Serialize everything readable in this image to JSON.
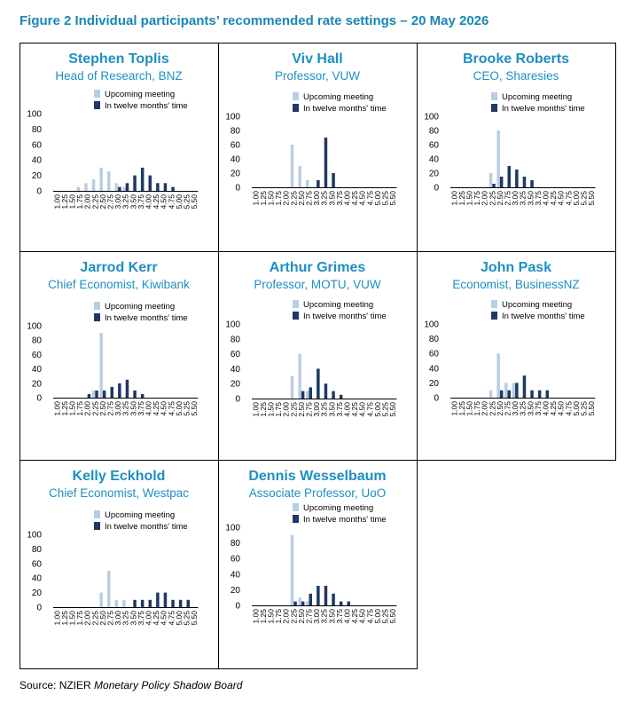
{
  "figure_title": "Figure 2 Individual participants’ recommended rate settings – 20 May 2026",
  "source": {
    "prefix": "Source: NZIER ",
    "italic": "Monetary Policy Shadow Board"
  },
  "colors": {
    "upcoming": "#b9cde5",
    "twelve_months": "#1f3864",
    "title": "#1a86b6",
    "names": "#1f8fc2"
  },
  "chart_data": [
    {
      "type": "bar",
      "name": "Stephen Toplis",
      "role": "Head of Research, BNZ",
      "categories": [
        "1.00",
        "1.25",
        "1.50",
        "1.75",
        "2.00",
        "2.25",
        "2.50",
        "2.75",
        "3.00",
        "3.25",
        "3.50",
        "3.75",
        "4.00",
        "4.25",
        "4.50",
        "4.75",
        "5.00",
        "5.25",
        "5.50"
      ],
      "series": [
        {
          "name": "Upcoming meeting",
          "values": [
            0,
            0,
            0,
            5,
            10,
            15,
            30,
            25,
            10,
            5,
            0,
            0,
            0,
            0,
            0,
            0,
            0,
            0,
            0
          ]
        },
        {
          "name": "In twelve months' time",
          "values": [
            0,
            0,
            0,
            0,
            0,
            0,
            0,
            0,
            5,
            10,
            20,
            30,
            20,
            10,
            10,
            5,
            0,
            0,
            0
          ]
        }
      ],
      "ylim": [
        0,
        100
      ],
      "yticks": [
        0,
        20,
        40,
        60,
        80,
        100
      ]
    },
    {
      "type": "bar",
      "name": "Viv Hall",
      "role": "Professor, VUW",
      "categories": [
        "1.00",
        "1.25",
        "1.50",
        "1.75",
        "2.00",
        "2.25",
        "2.50",
        "2.75",
        "3.00",
        "3.25",
        "3.50",
        "3.75",
        "4.00",
        "4.25",
        "4.50",
        "4.75",
        "5.00",
        "5.25",
        "5.50"
      ],
      "series": [
        {
          "name": "Upcoming meeting",
          "values": [
            0,
            0,
            0,
            0,
            0,
            60,
            30,
            10,
            0,
            0,
            0,
            0,
            0,
            0,
            0,
            0,
            0,
            0,
            0
          ]
        },
        {
          "name": "In twelve months' time",
          "values": [
            0,
            0,
            0,
            0,
            0,
            0,
            0,
            0,
            10,
            70,
            20,
            0,
            0,
            0,
            0,
            0,
            0,
            0,
            0
          ]
        }
      ],
      "ylim": [
        0,
        100
      ],
      "yticks": [
        0,
        20,
        40,
        60,
        80,
        100
      ]
    },
    {
      "type": "bar",
      "name": "Brooke Roberts",
      "role": "CEO, Sharesies",
      "categories": [
        "1.00",
        "1.25",
        "1.50",
        "1.75",
        "2.00",
        "2.25",
        "2.50",
        "2.75",
        "3.00",
        "3.25",
        "3.50",
        "3.75",
        "4.00",
        "4.25",
        "4.50",
        "4.75",
        "5.00",
        "5.25",
        "5.50"
      ],
      "series": [
        {
          "name": "Upcoming meeting",
          "values": [
            0,
            0,
            0,
            0,
            0,
            20,
            80,
            0,
            0,
            0,
            0,
            0,
            0,
            0,
            0,
            0,
            0,
            0,
            0
          ]
        },
        {
          "name": "In twelve months' time",
          "values": [
            0,
            0,
            0,
            0,
            0,
            5,
            15,
            30,
            25,
            15,
            10,
            0,
            0,
            0,
            0,
            0,
            0,
            0,
            0
          ]
        }
      ],
      "ylim": [
        0,
        100
      ],
      "yticks": [
        0,
        20,
        40,
        60,
        80,
        100
      ]
    },
    {
      "type": "bar",
      "name": "Jarrod Kerr",
      "role": "Chief Economist, Kiwibank",
      "categories": [
        "1.00",
        "1.25",
        "1.50",
        "1.75",
        "2.00",
        "2.25",
        "2.50",
        "2.75",
        "3.00",
        "3.25",
        "3.50",
        "3.75",
        "4.00",
        "4.25",
        "4.50",
        "4.75",
        "5.00",
        "5.25",
        "5.50"
      ],
      "series": [
        {
          "name": "Upcoming meeting",
          "values": [
            0,
            0,
            0,
            0,
            0,
            10,
            90,
            0,
            0,
            0,
            0,
            0,
            0,
            0,
            0,
            0,
            0,
            0,
            0
          ]
        },
        {
          "name": "In twelve months' time",
          "values": [
            0,
            0,
            0,
            0,
            5,
            10,
            10,
            15,
            20,
            25,
            10,
            5,
            0,
            0,
            0,
            0,
            0,
            0,
            0
          ]
        }
      ],
      "ylim": [
        0,
        100
      ],
      "yticks": [
        0,
        20,
        40,
        60,
        80,
        100
      ]
    },
    {
      "type": "bar",
      "name": "Arthur Grimes",
      "role": "Professor, MOTU, VUW",
      "categories": [
        "1.00",
        "1.25",
        "1.50",
        "1.75",
        "2.00",
        "2.25",
        "2.50",
        "2.75",
        "3.00",
        "3.25",
        "3.50",
        "3.75",
        "4.00",
        "4.25",
        "4.50",
        "4.75",
        "5.00",
        "5.25",
        "5.50"
      ],
      "series": [
        {
          "name": "Upcoming meeting",
          "values": [
            0,
            0,
            0,
            0,
            0,
            30,
            60,
            10,
            0,
            0,
            0,
            0,
            0,
            0,
            0,
            0,
            0,
            0,
            0
          ]
        },
        {
          "name": "In twelve months' time",
          "values": [
            0,
            0,
            0,
            0,
            0,
            0,
            10,
            15,
            40,
            20,
            10,
            5,
            0,
            0,
            0,
            0,
            0,
            0,
            0
          ]
        }
      ],
      "ylim": [
        0,
        100
      ],
      "yticks": [
        0,
        20,
        40,
        60,
        80,
        100
      ]
    },
    {
      "type": "bar",
      "name": "John Pask",
      "role": "Economist, BusinessNZ",
      "categories": [
        "1.00",
        "1.25",
        "1.50",
        "1.75",
        "2.00",
        "2.25",
        "2.50",
        "2.75",
        "3.00",
        "3.25",
        "3.50",
        "3.75",
        "4.00",
        "4.25",
        "4.50",
        "4.75",
        "5.00",
        "5.25",
        "5.50"
      ],
      "series": [
        {
          "name": "Upcoming meeting",
          "values": [
            0,
            0,
            0,
            0,
            0,
            10,
            60,
            20,
            20,
            0,
            0,
            0,
            0,
            0,
            0,
            0,
            0,
            0,
            0
          ]
        },
        {
          "name": "In twelve months' time",
          "values": [
            0,
            0,
            0,
            0,
            0,
            0,
            10,
            10,
            20,
            30,
            10,
            10,
            10,
            0,
            0,
            0,
            0,
            0,
            0
          ]
        }
      ],
      "ylim": [
        0,
        100
      ],
      "yticks": [
        0,
        20,
        40,
        60,
        80,
        100
      ]
    },
    {
      "type": "bar",
      "name": "Kelly Eckhold",
      "role": "Chief Economist, Westpac",
      "categories": [
        "1.00",
        "1.25",
        "1.50",
        "1.75",
        "2.00",
        "2.25",
        "2.50",
        "2.75",
        "3.00",
        "3.25",
        "3.50",
        "3.75",
        "4.00",
        "4.25",
        "4.50",
        "4.75",
        "5.00",
        "5.25",
        "5.50"
      ],
      "series": [
        {
          "name": "Upcoming meeting",
          "values": [
            0,
            0,
            0,
            0,
            0,
            0,
            20,
            50,
            10,
            10,
            0,
            0,
            0,
            0,
            0,
            0,
            0,
            0,
            0
          ]
        },
        {
          "name": "In twelve months' time",
          "values": [
            0,
            0,
            0,
            0,
            0,
            0,
            0,
            0,
            0,
            0,
            10,
            10,
            10,
            20,
            20,
            10,
            10,
            10,
            0
          ]
        }
      ],
      "ylim": [
        0,
        100
      ],
      "yticks": [
        0,
        20,
        40,
        60,
        80,
        100
      ]
    },
    {
      "type": "bar",
      "name": "Dennis Wesselbaum",
      "role": "Associate Professor, UoO",
      "categories": [
        "1.00",
        "1.25",
        "1.50",
        "1.75",
        "2.00",
        "2.25",
        "2.50",
        "2.75",
        "3.00",
        "3.25",
        "3.50",
        "3.75",
        "4.00",
        "4.25",
        "4.50",
        "4.75",
        "5.00",
        "5.25",
        "5.50"
      ],
      "series": [
        {
          "name": "Upcoming meeting",
          "values": [
            0,
            0,
            0,
            0,
            0,
            90,
            10,
            5,
            0,
            0,
            0,
            0,
            0,
            0,
            0,
            0,
            0,
            0,
            0
          ]
        },
        {
          "name": "In twelve months' time",
          "values": [
            0,
            0,
            0,
            0,
            0,
            5,
            5,
            15,
            25,
            25,
            15,
            5,
            5,
            0,
            0,
            0,
            0,
            0,
            0
          ]
        }
      ],
      "ylim": [
        0,
        100
      ],
      "yticks": [
        0,
        20,
        40,
        60,
        80,
        100
      ]
    }
  ]
}
